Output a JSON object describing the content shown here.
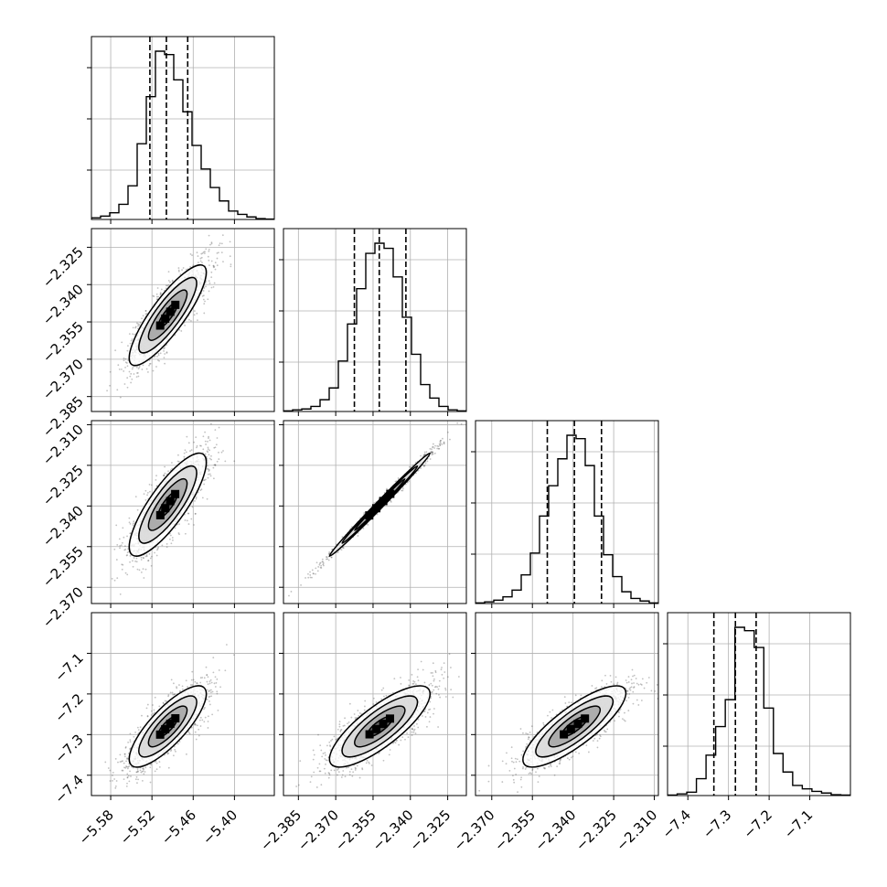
{
  "chart_data": {
    "type": "corner",
    "n_params": 4,
    "params": [
      {
        "ticks": [
          -5.58,
          -5.52,
          -5.46,
          -5.4
        ],
        "tick_labels": [
          "−5.58",
          "−5.52",
          "−5.46",
          "−5.40"
        ],
        "range": [
          -5.608,
          -5.342
        ]
      },
      {
        "ticks": [
          -2.385,
          -2.37,
          -2.355,
          -2.34,
          -2.325
        ],
        "tick_labels": [
          "−2.385",
          "−2.370",
          "−2.355",
          "−2.340",
          "−2.325"
        ],
        "range": [
          -2.391,
          -2.3175
        ]
      },
      {
        "ticks": [
          -2.37,
          -2.355,
          -2.34,
          -2.325,
          -2.31
        ],
        "tick_labels": [
          "−2.370",
          "−2.355",
          "−2.340",
          "−2.325",
          "−2.310"
        ],
        "range": [
          -2.376,
          -2.3085
        ]
      },
      {
        "ticks": [
          -7.4,
          -7.3,
          -7.2,
          -7.1
        ],
        "tick_labels": [
          "−7.4",
          "−7.3",
          "−7.2",
          "−7.1"
        ],
        "range": [
          -7.45,
          -7.0
        ]
      }
    ],
    "histograms": [
      {
        "counts": [
          1,
          2,
          4,
          9,
          20,
          45,
          73,
          100,
          98,
          83,
          64,
          44,
          30,
          19,
          11,
          5,
          3,
          1.5,
          0.5,
          0.2
        ],
        "quantiles": [
          -5.523,
          -5.499,
          -5.468
        ]
      },
      {
        "counts": [
          0.4,
          1,
          1.5,
          3,
          7,
          14,
          30,
          52,
          73,
          94,
          100,
          97,
          80,
          56,
          34,
          16,
          8,
          3,
          1,
          0.4
        ],
        "quantiles": [
          -2.3625,
          -2.3525,
          -2.3418
        ]
      },
      {
        "counts": [
          0.4,
          1,
          2,
          4,
          8,
          17,
          30,
          52,
          70,
          86,
          100,
          98,
          82,
          52,
          29,
          16,
          7,
          3,
          1.5,
          0.4
        ],
        "quantiles": [
          -2.3495,
          -2.3395,
          -2.3295
        ]
      },
      {
        "counts": [
          0.3,
          1,
          2,
          10,
          24,
          41,
          57,
          100,
          98,
          88,
          52,
          25,
          14,
          6,
          4,
          2.5,
          1.5,
          0.5,
          0.3
        ],
        "quantiles": [
          -7.336,
          -7.283,
          -7.232
        ]
      }
    ],
    "mean": [
      -5.497,
      -2.3523,
      -2.3395,
      -7.28
    ],
    "std": [
      0.028,
      0.0101,
      0.0095,
      0.05
    ],
    "correlation": [
      [
        1.0,
        0.85,
        0.82,
        0.8
      ],
      [
        0.85,
        1.0,
        0.995,
        0.8
      ],
      [
        0.82,
        0.995,
        1.0,
        0.82
      ],
      [
        0.8,
        0.8,
        0.82,
        1.0
      ]
    ],
    "contour_levels_sigma": [
      0.5,
      1.0,
      1.5,
      2.0
    ],
    "colors": {
      "frame": "#000000",
      "grid": "#b0b0b0",
      "points": "#4d4d4d",
      "contour_line": "#000000",
      "hist_line": "#000000"
    }
  }
}
